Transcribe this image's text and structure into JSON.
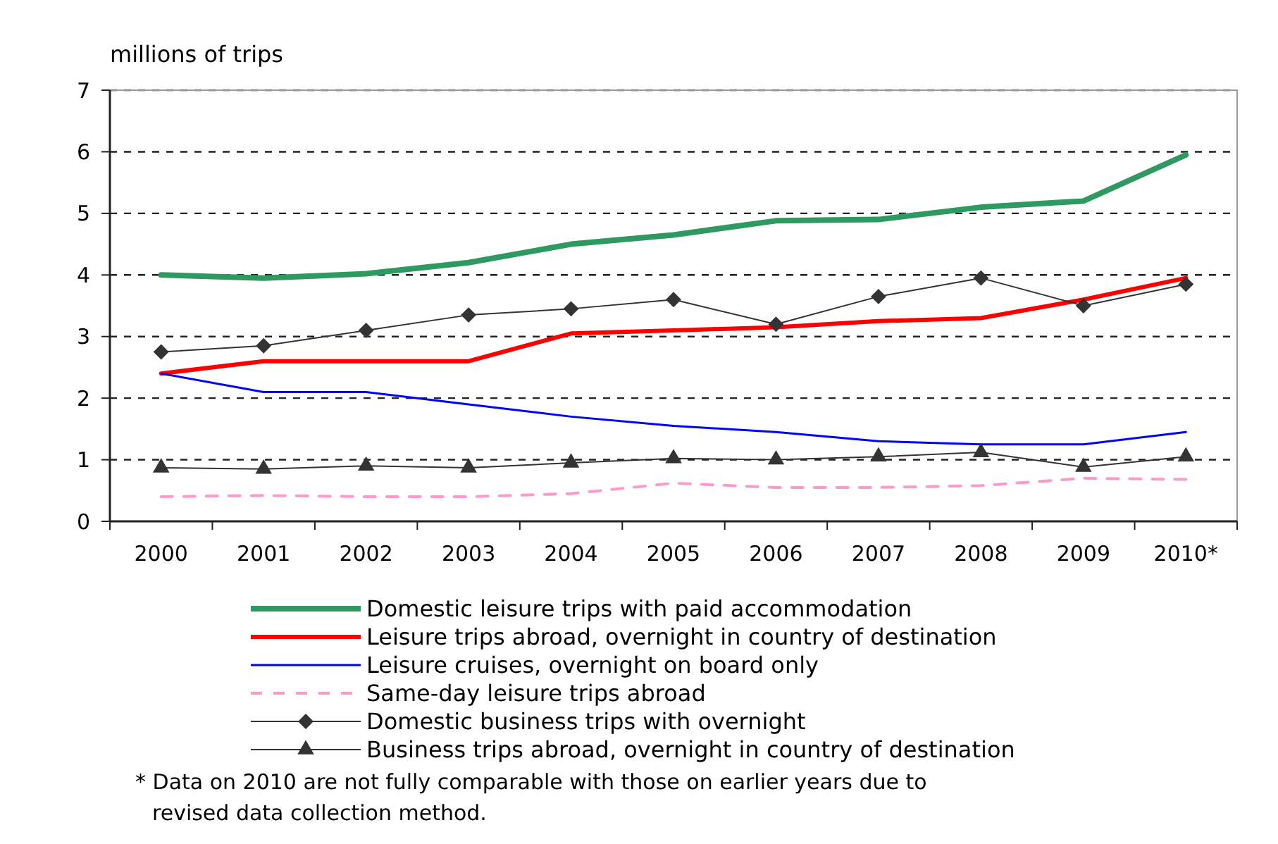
{
  "chart_data": {
    "type": "line",
    "ylabel": "millions of trips",
    "categories": [
      "2000",
      "2001",
      "2002",
      "2003",
      "2004",
      "2005",
      "2006",
      "2007",
      "2008",
      "2009",
      "2010*"
    ],
    "ylim": [
      0,
      7
    ],
    "yticks": [
      0,
      1,
      2,
      3,
      4,
      5,
      6,
      7
    ],
    "grid": "y",
    "legend": "bottom",
    "marker": "none",
    "series": [
      {
        "name": "Domestic leisure trips with paid accommodation",
        "color": "#2e9960",
        "line_style": "solid",
        "values": [
          4.0,
          3.95,
          4.02,
          4.2,
          4.5,
          4.65,
          4.88,
          4.9,
          5.1,
          5.2,
          5.95
        ]
      },
      {
        "name": "Leisure trips abroad, overnight in country of destination",
        "color": "#ff0000",
        "line_style": "solid",
        "values": [
          2.4,
          2.6,
          2.6,
          2.6,
          3.05,
          3.1,
          3.15,
          3.25,
          3.3,
          3.6,
          3.95
        ]
      },
      {
        "name": "Leisure cruises, overnight on board only",
        "color": "#0000ff",
        "line_style": "solid",
        "values": [
          2.4,
          2.1,
          2.1,
          1.9,
          1.7,
          1.55,
          1.45,
          1.3,
          1.25,
          1.25,
          1.45
        ]
      },
      {
        "name": "Same-day leisure trips abroad",
        "color": "#ff99cc",
        "line_style": "dashed",
        "values": [
          0.4,
          0.42,
          0.4,
          0.4,
          0.45,
          0.62,
          0.55,
          0.55,
          0.58,
          0.7,
          0.68
        ]
      },
      {
        "name": "Domestic business trips with overnight",
        "color": "#333333",
        "line_style": "solid",
        "marker": "diamond",
        "values": [
          2.75,
          2.85,
          3.1,
          3.35,
          3.45,
          3.6,
          3.2,
          3.65,
          3.95,
          3.5,
          3.85
        ]
      },
      {
        "name": "Business trips abroad, overnight in country of destination",
        "color": "#333333",
        "line_style": "solid",
        "marker": "triangle",
        "values": [
          0.87,
          0.85,
          0.9,
          0.87,
          0.95,
          1.02,
          1.0,
          1.05,
          1.12,
          0.88,
          1.05
        ]
      }
    ],
    "annotations": [
      "* Data on 2010 are not fully comparable with those on earlier years due to revised data collection method."
    ]
  }
}
